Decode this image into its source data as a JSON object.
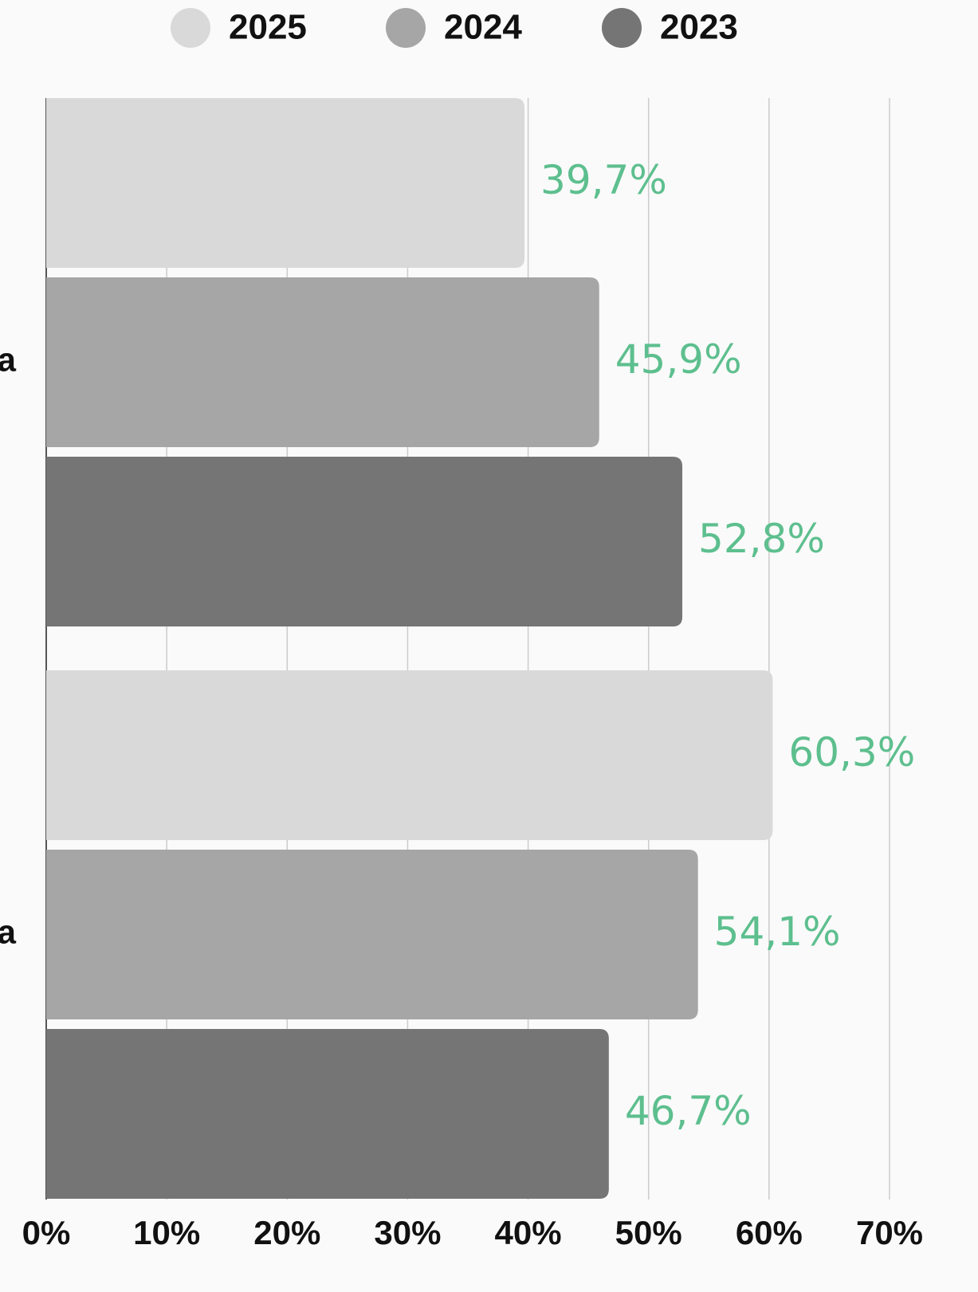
{
  "chart_data": {
    "type": "hbar",
    "categories": [
      "a",
      "a"
    ],
    "series": [
      {
        "name": "2025",
        "color": "#d9d9d9",
        "values": [
          39.7,
          60.3
        ],
        "value_labels": [
          "39,7%",
          "60,3%"
        ]
      },
      {
        "name": "2024",
        "color": "#a6a6a6",
        "values": [
          45.9,
          54.1
        ],
        "value_labels": [
          "45,9%",
          "54,1%"
        ]
      },
      {
        "name": "2023",
        "color": "#757575",
        "values": [
          52.8,
          46.7
        ],
        "value_labels": [
          "52,8%",
          "46,7%"
        ]
      }
    ],
    "xlim": [
      0,
      70
    ],
    "xticks": [
      {
        "value": 0,
        "label": "0%"
      },
      {
        "value": 10,
        "label": "10%"
      },
      {
        "value": 20,
        "label": "20%"
      },
      {
        "value": 30,
        "label": "30%"
      },
      {
        "value": 40,
        "label": "40%"
      },
      {
        "value": 50,
        "label": "50%"
      },
      {
        "value": 60,
        "label": "60%"
      },
      {
        "value": 70,
        "label": "70%"
      }
    ],
    "grid": true,
    "legend": "top"
  }
}
